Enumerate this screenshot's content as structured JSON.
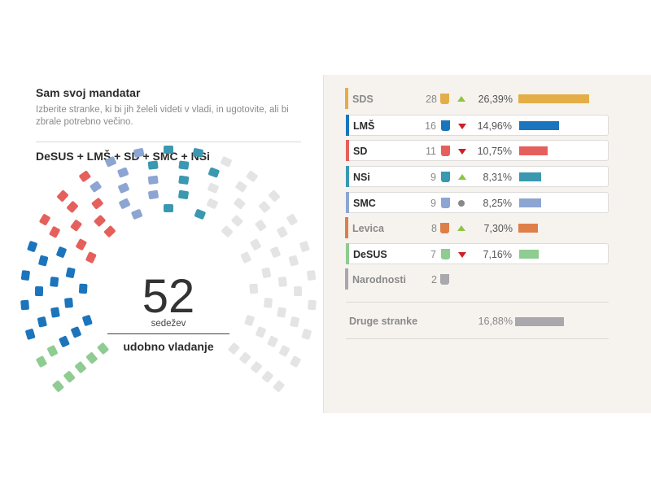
{
  "header": {
    "title": "Sam svoj mandatar",
    "subtitle": "Izberite stranke, ki bi jih želeli videti v vladi, in ugotovite, ali bi zbrale potrebno večino."
  },
  "coalition_label": "DeSUS + LMŠ + SD + SMC + NSi",
  "result": {
    "seats": "52",
    "seats_unit": "sedežev",
    "verdict": "udobno vladanje"
  },
  "hemicycle": {
    "total_seats": 90,
    "fill_order": [
      "DeSUS",
      "LMŠ",
      "SD",
      "SMC",
      "NSi"
    ],
    "empty_color": "#e4e4e4"
  },
  "parties": [
    {
      "name": "SDS",
      "seats": "28",
      "trend": "up",
      "pct": "26,39%",
      "pct_value": 26.39,
      "color": "#e3ae48",
      "selected": false
    },
    {
      "name": "LMŠ",
      "seats": "16",
      "trend": "down",
      "pct": "14,96%",
      "pct_value": 14.96,
      "color": "#1c75bc",
      "selected": true
    },
    {
      "name": "SD",
      "seats": "11",
      "trend": "down",
      "pct": "10,75%",
      "pct_value": 10.75,
      "color": "#e5605c",
      "selected": true
    },
    {
      "name": "NSi",
      "seats": "9",
      "trend": "up",
      "pct": "8,31%",
      "pct_value": 8.31,
      "color": "#3a98b0",
      "selected": true
    },
    {
      "name": "SMC",
      "seats": "9",
      "trend": "flat",
      "pct": "8,25%",
      "pct_value": 8.25,
      "color": "#8da5d2",
      "selected": true
    },
    {
      "name": "Levica",
      "seats": "8",
      "trend": "up",
      "pct": "7,30%",
      "pct_value": 7.3,
      "color": "#de7f4a",
      "selected": false
    },
    {
      "name": "DeSUS",
      "seats": "7",
      "trend": "down",
      "pct": "7,16%",
      "pct_value": 7.16,
      "color": "#8fcc92",
      "selected": true
    },
    {
      "name": "Narodnosti",
      "seats": "2",
      "trend": "",
      "pct": "",
      "pct_value": 0,
      "color": "#a8a8ad",
      "selected": false
    }
  ],
  "others": {
    "name": "Druge stranke",
    "pct": "16,88%",
    "pct_value": 16.88,
    "color": "#a8a8ad"
  },
  "colors": {
    "trend_up": "#8dc63f",
    "trend_down": "#cc2027",
    "trend_flat": "#888888",
    "text_selected": "#2b2b2b",
    "text_unselected": "#8a8a8a"
  }
}
